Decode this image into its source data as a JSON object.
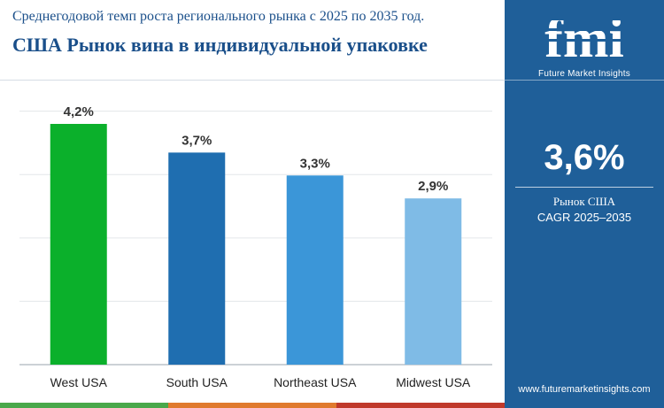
{
  "header": {
    "subtitle": "Среднегодовой темп роста регионального рынка с 2025 по 2035 год.",
    "title": "США Рынок вина в индивидуальной упаковке"
  },
  "sidebar": {
    "logo_text": "fmi",
    "logo_tagline": "Future Market Insights",
    "cagr_value": "3,6%",
    "cagr_label_line1": "Рынок США",
    "cagr_label_line2": "CAGR 2025–2035",
    "website": "www.futuremarketinsights.com",
    "background_color": "#1f5f99"
  },
  "chart_data": {
    "type": "bar",
    "categories": [
      "West USA",
      "South USA",
      "Northeast USA",
      "Midwest USA"
    ],
    "values": [
      4.2,
      3.7,
      3.3,
      2.9
    ],
    "value_labels": [
      "4,2%",
      "3,7%",
      "3,3%",
      "2,9%"
    ],
    "colors": [
      "#0bb02b",
      "#1f6eb0",
      "#3b96d8",
      "#7fbbe6"
    ],
    "ylim": [
      0,
      4.2
    ],
    "grid": true
  },
  "bottom_strip_colors": [
    "#49a84a",
    "#e07a2e",
    "#c0392b",
    "#1f5f99"
  ]
}
